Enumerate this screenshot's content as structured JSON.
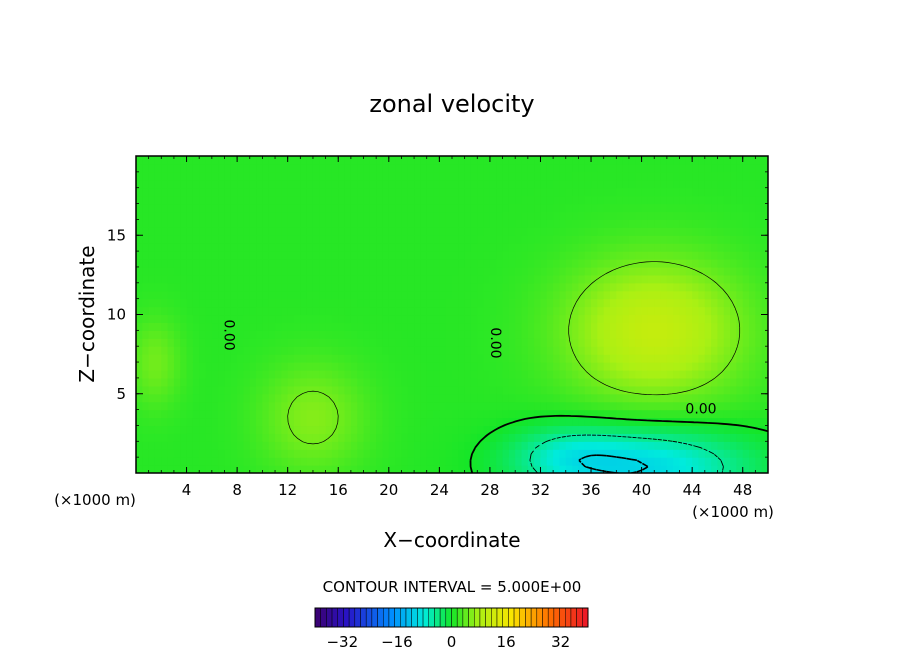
{
  "chart_data": {
    "type": "heatmap",
    "title": "zonal velocity",
    "xlabel": "X−coordinate",
    "ylabel": "Z−coordinate",
    "x_unit_left": "(×1000 m)",
    "x_unit_right": "(×1000 m)",
    "xlim": [
      0,
      50
    ],
    "ylim": [
      0,
      20
    ],
    "x_ticks": [
      4,
      8,
      12,
      16,
      20,
      24,
      28,
      32,
      36,
      40,
      44,
      48
    ],
    "y_ticks": [
      5,
      10,
      15
    ],
    "contour_interval_text": "CONTOUR INTERVAL = 5.000E+00",
    "contour_labels": [
      {
        "text": "0.00",
        "x": 7.3,
        "y": 8.7,
        "rotate": true
      },
      {
        "text": "0.00",
        "x": 28.4,
        "y": 8.2,
        "rotate": true
      },
      {
        "text": "0.00",
        "x": 44.7,
        "y": 4.0,
        "rotate": false
      }
    ],
    "colorbar": {
      "range": [
        -40,
        40
      ],
      "tick_values": [
        -32,
        -16,
        0,
        16,
        32
      ],
      "tick_labels": [
        "−32",
        "−16",
        "0",
        "16",
        "32"
      ]
    },
    "field_description": {
      "background_value": 1,
      "features": [
        {
          "x": 41,
          "y": 9,
          "value": 10,
          "sx": 5,
          "sy": 3.2
        },
        {
          "x": 14,
          "y": 3.5,
          "value": 5,
          "sx": 3,
          "sy": 2.5
        },
        {
          "x": 1.5,
          "y": 7,
          "value": 4,
          "sx": 1.5,
          "sy": 2
        },
        {
          "x": 40,
          "y": 0.4,
          "value": -11,
          "sx": 6,
          "sy": 1.8
        },
        {
          "x": 34,
          "y": 1.2,
          "value": -4,
          "sx": 3,
          "sy": 1.2
        }
      ]
    }
  }
}
